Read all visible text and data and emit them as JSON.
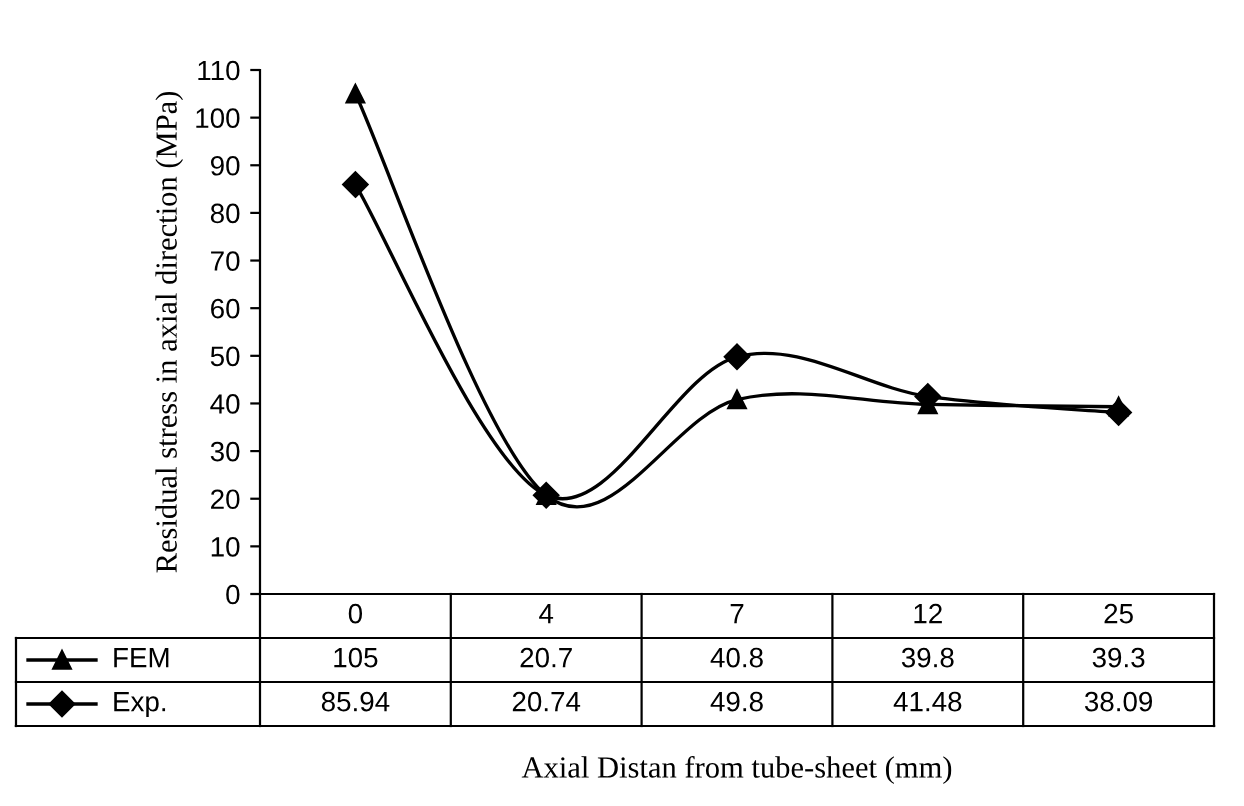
{
  "chart_data": {
    "type": "line",
    "xlabel": "Axial Distan from tube-sheet (mm)",
    "ylabel": "Residual stress in axial direction (MPa)",
    "categories": [
      "0",
      "4",
      "7",
      "12",
      "25"
    ],
    "series": [
      {
        "name": "FEM",
        "color": "#000000",
        "marker": "triangle",
        "values": [
          105,
          20.7,
          40.8,
          39.8,
          39.3
        ]
      },
      {
        "name": "Exp.",
        "color": "#000000",
        "marker": "diamond",
        "values": [
          85.94,
          20.74,
          49.8,
          41.48,
          38.09
        ]
      }
    ],
    "ylim": [
      0,
      110
    ],
    "yticks": [
      0,
      10,
      20,
      30,
      40,
      50,
      60,
      70,
      80,
      90,
      100,
      110
    ],
    "grid": false,
    "legend": "left",
    "data_labels": true,
    "line_style": "solid"
  }
}
